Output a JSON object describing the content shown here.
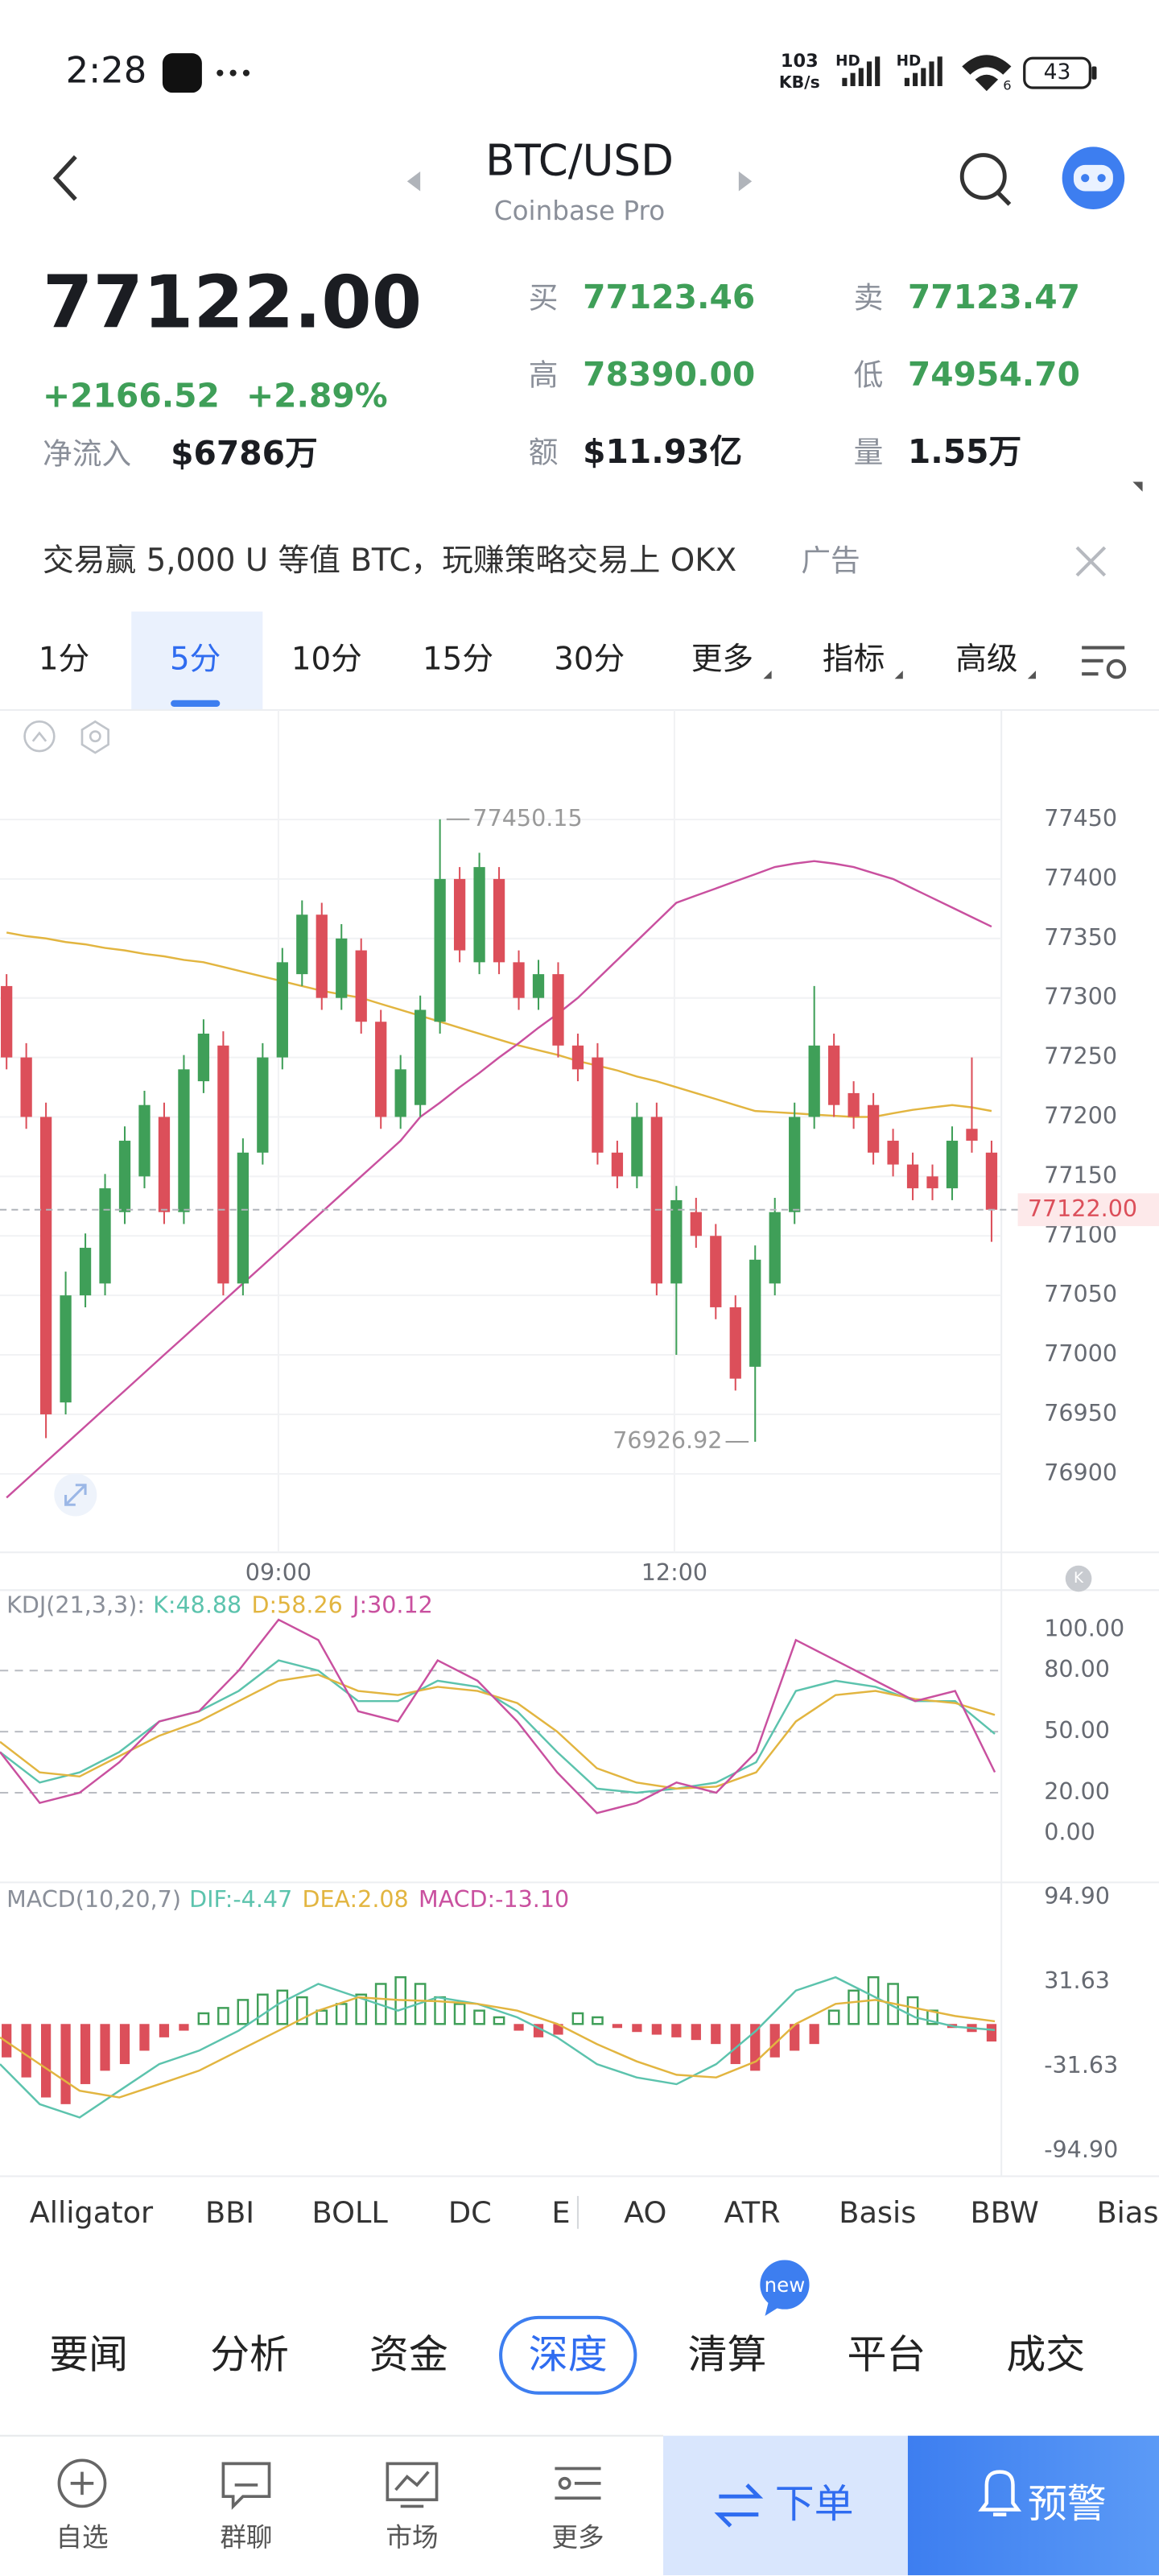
{
  "status": {
    "time": "2:28",
    "speed": "103",
    "speed_unit": "KB/s",
    "hd1": "HD",
    "hd2": "HD",
    "wifi": "6",
    "battery": "43"
  },
  "header": {
    "pair": "BTC/USD",
    "exchange": "Coinbase Pro"
  },
  "quote": {
    "price": "77122.00",
    "change": "+2166.52",
    "change_pct": "+2.89%",
    "inflow_label": "净流入",
    "inflow": "$6786万",
    "stats": [
      {
        "label": "买",
        "value": "77123.46"
      },
      {
        "label": "卖",
        "value": "77123.47"
      },
      {
        "label": "高",
        "value": "78390.00"
      },
      {
        "label": "低",
        "value": "74954.70"
      },
      {
        "label": "额",
        "value": "$11.93亿"
      },
      {
        "label": "量",
        "value": "1.55万"
      }
    ]
  },
  "ad": {
    "text": "交易赢 5,000 U 等值 BTC，玩赚策略交易上 OKX",
    "tag": "广告"
  },
  "tabs": [
    "1分",
    "5分",
    "10分",
    "15分",
    "30分",
    "更多",
    "指标",
    "高级"
  ],
  "chart_data": [
    {
      "type": "candlestick",
      "up_color": "#3f9f58",
      "down_color": "#dc4f5a",
      "open": [
        77310,
        77250,
        77200,
        76960,
        77050,
        77060,
        77120,
        77150,
        77200,
        77120,
        77230,
        77260,
        77060,
        77170,
        77250,
        77320,
        77370,
        77300,
        77340,
        77280,
        77200,
        77210,
        77280,
        77400,
        77330,
        77400,
        77330,
        77300,
        77320,
        77260,
        77250,
        77170,
        77150,
        77200,
        77060,
        77120,
        77100,
        77040,
        76990,
        77060,
        77120,
        77200,
        77260,
        77220,
        77210,
        77180,
        77160,
        77150,
        77140,
        77190,
        77170
      ],
      "high": [
        77320,
        77262,
        77212,
        77070,
        77102,
        77152,
        77192,
        77222,
        77212,
        77252,
        77282,
        77272,
        77182,
        77262,
        77342,
        77382,
        77380,
        77362,
        77350,
        77290,
        77252,
        77302,
        77450.15,
        77410,
        77422,
        77410,
        77340,
        77332,
        77330,
        77270,
        77262,
        77180,
        77212,
        77212,
        77142,
        77132,
        77110,
        77050,
        77092,
        77132,
        77212,
        77310,
        77270,
        77230,
        77220,
        77190,
        77170,
        77160,
        77192,
        77250,
        77180
      ],
      "low": [
        77240,
        77190,
        76930,
        76950,
        77040,
        77050,
        77110,
        77140,
        77110,
        77110,
        77220,
        77050,
        77050,
        77160,
        77240,
        77310,
        77290,
        77290,
        77270,
        77190,
        77190,
        77200,
        77270,
        77330,
        77320,
        77320,
        77290,
        77290,
        77250,
        77230,
        77160,
        77140,
        77140,
        77050,
        77000,
        77090,
        77030,
        76970,
        76926.92,
        77050,
        77110,
        77190,
        77200,
        77190,
        77160,
        77150,
        77130,
        77130,
        77130,
        77170,
        77095
      ],
      "close": [
        77250,
        77200,
        76950,
        77050,
        77090,
        77140,
        77180,
        77210,
        77120,
        77240,
        77270,
        77060,
        77170,
        77250,
        77330,
        77370,
        77300,
        77350,
        77280,
        77200,
        77240,
        77290,
        77400,
        77340,
        77410,
        77330,
        77300,
        77320,
        77260,
        77240,
        77170,
        77150,
        77200,
        77060,
        77130,
        77100,
        77040,
        76980,
        77080,
        77120,
        77200,
        77260,
        77210,
        77200,
        77170,
        77160,
        77140,
        77140,
        77180,
        77180,
        77122
      ],
      "series": [
        {
          "color": "#e2b540",
          "values": [
            77355,
            77352,
            77350,
            77347,
            77345,
            77342,
            77340,
            77337,
            77335,
            77332,
            77330,
            77326,
            77322,
            77318,
            77314,
            77310,
            77306,
            77303,
            77300,
            77295,
            77290,
            77285,
            77280,
            77275,
            77270,
            77265,
            77260,
            77256,
            77252,
            77247,
            77243,
            77239,
            77234,
            77230,
            77225,
            77220,
            77215,
            77210,
            77205,
            77204,
            77203,
            77202,
            77201,
            77200,
            77200,
            77203,
            77206,
            77208,
            77210,
            77208,
            77205
          ]
        },
        {
          "color": "#c9509f",
          "values": [
            76880,
            76895,
            76910,
            76925,
            76940,
            76955,
            76970,
            76985,
            77000,
            77015,
            77030,
            77045,
            77060,
            77075,
            77090,
            77105,
            77120,
            77135,
            77150,
            77165,
            77180,
            77200,
            77212,
            77225,
            77237,
            77250,
            77262,
            77275,
            77287,
            77300,
            77316,
            77332,
            77348,
            77364,
            77380,
            77386,
            77392,
            77398,
            77404,
            77410,
            77413,
            77415,
            77413,
            77410,
            77405,
            77400,
            77392,
            77384,
            77376,
            77368,
            77360
          ]
        }
      ],
      "last_price": {
        "value": 77122,
        "label": "77122.00"
      },
      "ylim": [
        76834,
        77542
      ],
      "yticks": [
        77450,
        77400,
        77350,
        77300,
        77250,
        77200,
        77150,
        77100,
        77050,
        77000,
        76950,
        76900
      ],
      "xticks": [
        {
          "value": 13.8,
          "label": "09:00"
        },
        {
          "value": 33.9,
          "label": "12:00"
        }
      ],
      "grid": true
    },
    {
      "type": "line",
      "legend_title": "KDJ(21,3,3):",
      "series": [
        {
          "name": "K:48.88",
          "color": "#5cc3ad",
          "values": [
            40,
            25,
            30,
            40,
            55,
            60,
            70,
            85,
            80,
            65,
            65,
            75,
            72,
            60,
            40,
            22,
            20,
            22,
            25,
            35,
            70,
            75,
            72,
            65,
            65,
            48.88
          ]
        },
        {
          "name": "D:58.26",
          "color": "#e2b540",
          "values": [
            45,
            30,
            28,
            38,
            48,
            55,
            65,
            75,
            78,
            70,
            68,
            72,
            70,
            64,
            50,
            32,
            25,
            22,
            23,
            30,
            55,
            68,
            70,
            66,
            64,
            58.26
          ]
        },
        {
          "name": "J:30.12",
          "color": "#c9509f",
          "values": [
            40,
            15,
            20,
            35,
            55,
            60,
            80,
            105,
            95,
            60,
            55,
            85,
            75,
            55,
            30,
            10,
            15,
            25,
            20,
            40,
            95,
            85,
            75,
            65,
            70,
            30.12
          ]
        }
      ],
      "ylim": [
        -24,
        119.5
      ],
      "yticks": [
        {
          "value": 100,
          "label": "100.00"
        },
        {
          "value": 80,
          "label": "80.00"
        },
        {
          "value": 50,
          "label": "50.00"
        },
        {
          "value": 20,
          "label": "20.00"
        },
        {
          "value": 0,
          "label": "0.00"
        }
      ],
      "guides": [
        80,
        50,
        20
      ]
    },
    {
      "type": "macd",
      "legend_title": "MACD(10,20,7)",
      "series": [
        {
          "name": "DIF:-4.47",
          "color": "#5cc3ad",
          "values": [
            -30,
            -60,
            -70,
            -50,
            -30,
            -20,
            -5,
            15,
            30,
            20,
            10,
            20,
            15,
            5,
            -10,
            -30,
            -40,
            -45,
            -30,
            -5,
            25,
            35,
            20,
            5,
            -2,
            -4.47
          ]
        },
        {
          "name": "DEA:2.08",
          "color": "#e2b540",
          "values": [
            -10,
            -30,
            -50,
            -55,
            -45,
            -35,
            -20,
            -5,
            10,
            20,
            18,
            17,
            15,
            10,
            0,
            -15,
            -28,
            -38,
            -40,
            -28,
            0,
            15,
            18,
            12,
            6,
            2.08
          ]
        }
      ],
      "histogram": {
        "name": "MACD:-13.10",
        "color": "#c9509f",
        "up_color": "#3f9f58",
        "down_color": "#dc4f5a",
        "values": [
          -25,
          -40,
          -55,
          -60,
          -45,
          -35,
          -30,
          -20,
          -10,
          -5,
          8,
          12,
          18,
          22,
          25,
          20,
          10,
          15,
          22,
          30,
          35,
          30,
          20,
          15,
          10,
          5,
          -5,
          -10,
          -8,
          8,
          5,
          -3,
          -6,
          -8,
          -10,
          -12,
          -15,
          -30,
          -35,
          -25,
          -20,
          -15,
          10,
          25,
          35,
          30,
          20,
          10,
          -3,
          -6,
          -13.1
        ]
      },
      "ylim": [
        -114,
        106
      ],
      "yticks": [
        {
          "value": 94.9,
          "label": "94.90"
        },
        31.63,
        -31.63,
        {
          "value": -94.9,
          "label": "-94.90"
        }
      ]
    }
  ],
  "indicators": [
    "Alligator",
    "BBI",
    "BOLL",
    "DC",
    "E",
    "AO",
    "ATR",
    "Basis",
    "BBW",
    "Bias"
  ],
  "news_badge": "new",
  "nav": [
    "要闻",
    "分析",
    "资金",
    "深度",
    "清算",
    "平台",
    "成交"
  ],
  "bottom_bar": {
    "items": [
      "自选",
      "群聊",
      "市场",
      "更多"
    ],
    "order": "下单",
    "alert": "预警"
  }
}
